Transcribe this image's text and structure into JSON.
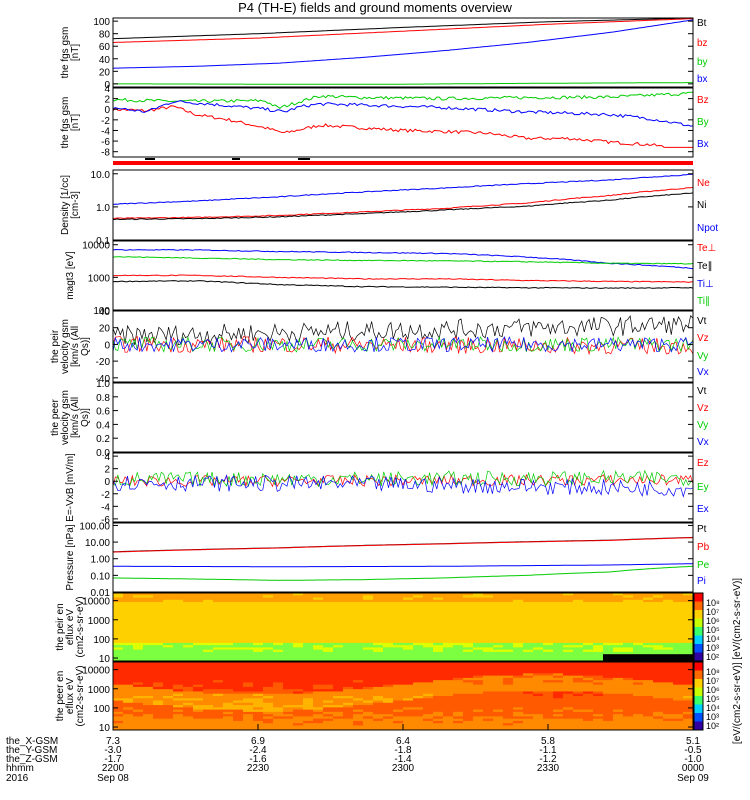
{
  "title": "P4 (TH-E) fields and ground moments overview",
  "colorbar_label": "[eV/(cm2-s-sr-eV)] [eV/(cm2-s-sr-eV)]",
  "time_axis": {
    "rows": [
      {
        "label": "the_X-GSM",
        "values": [
          "7.3",
          "6.9",
          "6.4",
          "5.8",
          "5.1"
        ]
      },
      {
        "label": "the_Y-GSM",
        "values": [
          "-3.0",
          "-2.4",
          "-1.8",
          "-1.1",
          "-0.5"
        ]
      },
      {
        "label": "the_Z-GSM",
        "values": [
          "-1.7",
          "-1.6",
          "-1.4",
          "-1.2",
          "-1.0"
        ]
      },
      {
        "label": "hhmm",
        "values": [
          "2200",
          "2230",
          "2300",
          "2330",
          "0000"
        ]
      }
    ],
    "year": "2016",
    "dates": [
      "Sep 08",
      "Sep 09"
    ]
  },
  "chart_data": [
    {
      "type": "line",
      "ylabel": "the fgs gsm [nT]",
      "yticks": [
        "0",
        "20",
        "40",
        "60",
        "80",
        "100"
      ],
      "ylim": [
        -5,
        105
      ],
      "series": [
        {
          "name": "Bt",
          "color": "#000000",
          "points": [
            [
              0,
              72
            ],
            [
              30,
              80
            ],
            [
              60,
              90
            ],
            [
              90,
              99
            ],
            [
              120,
              105
            ]
          ]
        },
        {
          "name": "bz",
          "color": "#ff0000",
          "points": [
            [
              0,
              66
            ],
            [
              30,
              73
            ],
            [
              60,
              84
            ],
            [
              90,
              95
            ],
            [
              120,
              104
            ]
          ]
        },
        {
          "name": "by",
          "color": "#00cc00",
          "points": [
            [
              0,
              0
            ],
            [
              30,
              -0.5
            ],
            [
              60,
              -0.5
            ],
            [
              90,
              1
            ],
            [
              120,
              2
            ]
          ]
        },
        {
          "name": "bx",
          "color": "#0000ff",
          "points": [
            [
              0,
              25
            ],
            [
              30,
              28
            ],
            [
              60,
              33
            ],
            [
              90,
              42
            ],
            [
              120,
              53
            ],
            [
              150,
              66
            ],
            [
              180,
              82
            ],
            [
              210,
              102
            ]
          ]
        }
      ]
    },
    {
      "type": "line",
      "ylabel": "the fgs gsm [nT]",
      "yticks": [
        "-8",
        "-6",
        "-4",
        "-2",
        "0",
        "2",
        "4"
      ],
      "ylim": [
        -9,
        4
      ],
      "series": [
        {
          "name": "Bz",
          "color": "#ff0000",
          "points": [
            [
              0,
              0
            ],
            [
              12,
              -0.3
            ],
            [
              22,
              0.5
            ],
            [
              30,
              -1
            ],
            [
              42,
              -2
            ],
            [
              55,
              -3.5
            ],
            [
              62,
              -4.5
            ],
            [
              75,
              -3
            ],
            [
              90,
              -3.5
            ],
            [
              105,
              -4
            ],
            [
              120,
              -4.2
            ],
            [
              135,
              -4.5
            ],
            [
              150,
              -5.5
            ],
            [
              165,
              -5.5
            ],
            [
              180,
              -6.2
            ],
            [
              195,
              -6.7
            ],
            [
              210,
              -8
            ]
          ]
        },
        {
          "name": "By",
          "color": "#00cc00",
          "points": [
            [
              0,
              1.8
            ],
            [
              22,
              1.5
            ],
            [
              30,
              1.5
            ],
            [
              55,
              1.6
            ],
            [
              60,
              0.2
            ],
            [
              68,
              1.5
            ],
            [
              75,
              2.5
            ],
            [
              90,
              2.2
            ],
            [
              120,
              2
            ],
            [
              150,
              2.2
            ],
            [
              180,
              2.3
            ],
            [
              210,
              3
            ]
          ]
        },
        {
          "name": "Bx",
          "color": "#0000ff",
          "points": [
            [
              0,
              0.3
            ],
            [
              12,
              -0.5
            ],
            [
              22,
              1.5
            ],
            [
              35,
              1
            ],
            [
              45,
              0.5
            ],
            [
              55,
              0
            ],
            [
              62,
              -0.5
            ],
            [
              68,
              0.5
            ],
            [
              75,
              1
            ],
            [
              90,
              0.8
            ],
            [
              120,
              0.3
            ],
            [
              150,
              -0.5
            ],
            [
              180,
              -1
            ],
            [
              195,
              -1.8
            ],
            [
              210,
              -3.2
            ]
          ]
        }
      ]
    },
    {
      "type": "line",
      "ylabel": "Density [1/cc] [cm-3]",
      "yscale": "log",
      "yticks": [
        "0.1",
        "1.0",
        "10.0"
      ],
      "ylim": [
        0.1,
        13
      ],
      "series": [
        {
          "name": "Ne",
          "color": "#ff0000",
          "points": [
            [
              0,
              0.45
            ],
            [
              30,
              0.48
            ],
            [
              60,
              0.55
            ],
            [
              90,
              0.7
            ],
            [
              120,
              0.9
            ],
            [
              150,
              1.3
            ],
            [
              180,
              2.2
            ],
            [
              210,
              3.8
            ]
          ]
        },
        {
          "name": "Ni",
          "color": "#000000",
          "points": [
            [
              0,
              0.42
            ],
            [
              30,
              0.44
            ],
            [
              60,
              0.5
            ],
            [
              90,
              0.62
            ],
            [
              120,
              0.8
            ],
            [
              150,
              1.05
            ],
            [
              180,
              1.6
            ],
            [
              210,
              2.6
            ]
          ]
        },
        {
          "name": "Npot",
          "color": "#0000ff",
          "points": [
            [
              0,
              1.2
            ],
            [
              30,
              1.5
            ],
            [
              60,
              2
            ],
            [
              90,
              2.8
            ],
            [
              120,
              3.7
            ],
            [
              150,
              5
            ],
            [
              180,
              6.5
            ],
            [
              210,
              9.5
            ]
          ]
        }
      ]
    },
    {
      "type": "line",
      "ylabel": "magt3 [eV]",
      "yscale": "log",
      "yticks": [
        "100",
        "1000",
        "10000"
      ],
      "ylim": [
        100,
        13000
      ],
      "series": [
        {
          "name": "Te⊥",
          "color": "#ff0000",
          "points": [
            [
              0,
              1150
            ],
            [
              30,
              1150
            ],
            [
              60,
              1000
            ],
            [
              90,
              900
            ],
            [
              120,
              900
            ],
            [
              150,
              800
            ],
            [
              180,
              750
            ],
            [
              210,
              720
            ]
          ]
        },
        {
          "name": "Te∥",
          "color": "#000000",
          "points": [
            [
              0,
              750
            ],
            [
              30,
              780
            ],
            [
              60,
              600
            ],
            [
              90,
              520
            ],
            [
              120,
              500
            ],
            [
              150,
              480
            ],
            [
              180,
              470
            ],
            [
              210,
              480
            ]
          ]
        },
        {
          "name": "Ti⊥",
          "color": "#0000ff",
          "points": [
            [
              0,
              7000
            ],
            [
              30,
              6900
            ],
            [
              60,
              6200
            ],
            [
              90,
              5800
            ],
            [
              120,
              5400
            ],
            [
              150,
              4200
            ],
            [
              180,
              2700
            ],
            [
              210,
              1900
            ]
          ]
        },
        {
          "name": "Ti∥",
          "color": "#00cc00",
          "points": [
            [
              0,
              4300
            ],
            [
              30,
              3900
            ],
            [
              60,
              3500
            ],
            [
              90,
              3300
            ],
            [
              120,
              3200
            ],
            [
              150,
              3000
            ],
            [
              180,
              2700
            ],
            [
              210,
              2600
            ]
          ]
        }
      ]
    },
    {
      "type": "line",
      "ylabel": "the peir velocity gsm [km/s (All Qs)]",
      "yticks": [
        "-40",
        "-20",
        "0",
        "20",
        "40"
      ],
      "ylim": [
        -45,
        40
      ],
      "series": [
        {
          "name": "Vt",
          "color": "#000000",
          "points": [
            [
              0,
              10
            ],
            [
              60,
              14
            ],
            [
              120,
              18
            ],
            [
              180,
              22
            ],
            [
              210,
              24
            ]
          ],
          "noise": 12
        },
        {
          "name": "Vz",
          "color": "#ff0000",
          "points": [
            [
              0,
              0
            ],
            [
              60,
              0
            ],
            [
              120,
              -1
            ],
            [
              180,
              -2
            ],
            [
              210,
              -2
            ]
          ],
          "noise": 10
        },
        {
          "name": "Vy",
          "color": "#00cc00",
          "points": [
            [
              0,
              0
            ],
            [
              60,
              0
            ],
            [
              120,
              0
            ],
            [
              180,
              0
            ],
            [
              210,
              0
            ]
          ],
          "noise": 9
        },
        {
          "name": "Vx",
          "color": "#0000ff",
          "points": [
            [
              0,
              0
            ],
            [
              60,
              0
            ],
            [
              120,
              0
            ],
            [
              180,
              0
            ],
            [
              210,
              0
            ]
          ],
          "noise": 9
        }
      ]
    },
    {
      "type": "line",
      "ylabel": "the peer velocity gsm [km/s (All Qs)]",
      "yticks": [
        "0.0",
        "0.2",
        "0.4",
        "0.6",
        "0.8",
        "1.0"
      ],
      "ylim": [
        0,
        1
      ],
      "series": [
        {
          "name": "Vt",
          "color": "#000000",
          "points": []
        },
        {
          "name": "Vz",
          "color": "#ff0000",
          "points": []
        },
        {
          "name": "Vy",
          "color": "#00cc00",
          "points": []
        },
        {
          "name": "Vx",
          "color": "#0000ff",
          "points": []
        }
      ]
    },
    {
      "type": "line",
      "ylabel": "E=-VxB [mV/m]",
      "yticks": [
        "-6",
        "-4",
        "-2",
        "0",
        "2",
        "4"
      ],
      "ylim": [
        -6.5,
        4.5
      ],
      "series": [
        {
          "name": "Ez",
          "color": "#ff0000",
          "points": [
            [
              0,
              0
            ],
            [
              210,
              0.2
            ]
          ],
          "noise": 0.9
        },
        {
          "name": "Ey",
          "color": "#00cc00",
          "points": [
            [
              0,
              0.3
            ],
            [
              210,
              0.5
            ]
          ],
          "noise": 1.2
        },
        {
          "name": "Ex",
          "color": "#0000ff",
          "points": [
            [
              0,
              -0.2
            ],
            [
              100,
              -0.5
            ],
            [
              210,
              -1.2
            ]
          ],
          "noise": 1.3
        }
      ]
    },
    {
      "type": "line",
      "ylabel": "Pressure [nPa]",
      "yscale": "log",
      "yticks": [
        "0.01",
        "0.10",
        "1.00",
        "10.00",
        "100.00"
      ],
      "ylim": [
        0.01,
        140
      ],
      "series": [
        {
          "name": "Pt",
          "color": "#000000",
          "points": [
            [
              0,
              2.6
            ],
            [
              60,
              4.5
            ],
            [
              120,
              8
            ],
            [
              180,
              13
            ],
            [
              210,
              19
            ]
          ]
        },
        {
          "name": "Pb",
          "color": "#ff0000",
          "points": [
            [
              0,
              2.5
            ],
            [
              60,
              4.4
            ],
            [
              120,
              7.8
            ],
            [
              180,
              12.6
            ],
            [
              210,
              18.5
            ]
          ]
        },
        {
          "name": "Pe",
          "color": "#00cc00",
          "points": [
            [
              0,
              0.07
            ],
            [
              30,
              0.06
            ],
            [
              60,
              0.05
            ],
            [
              90,
              0.055
            ],
            [
              120,
              0.07
            ],
            [
              150,
              0.1
            ],
            [
              180,
              0.16
            ],
            [
              210,
              0.35
            ]
          ]
        },
        {
          "name": "Pi",
          "color": "#0000ff",
          "points": [
            [
              0,
              0.35
            ],
            [
              60,
              0.33
            ],
            [
              120,
              0.35
            ],
            [
              180,
              0.42
            ],
            [
              210,
              0.5
            ]
          ]
        }
      ]
    },
    {
      "type": "heatmap",
      "ylabel": "the peir en eflux eV (cm2-s-sr-eV)",
      "yscale": "log",
      "yticks": [
        "10",
        "100",
        "1000",
        "10000"
      ],
      "ylim": [
        7,
        25000
      ],
      "clim": [
        100,
        10000000
      ],
      "colorbar_ticks": [
        "10⁸",
        "10⁷",
        "10⁶",
        "10⁵",
        "10⁴",
        "10³",
        "10²"
      ]
    },
    {
      "type": "heatmap",
      "ylabel": "the peer en eflux eV (cm2-s-sr-eV)",
      "yscale": "log",
      "yticks": [
        "10",
        "100",
        "1000",
        "10000"
      ],
      "ylim": [
        7,
        25000
      ],
      "clim": [
        100,
        10000000
      ],
      "colorbar_ticks": [
        "10⁸",
        "10⁷",
        "10⁶",
        "10⁵",
        "10⁴",
        "10³",
        "10²"
      ]
    }
  ]
}
